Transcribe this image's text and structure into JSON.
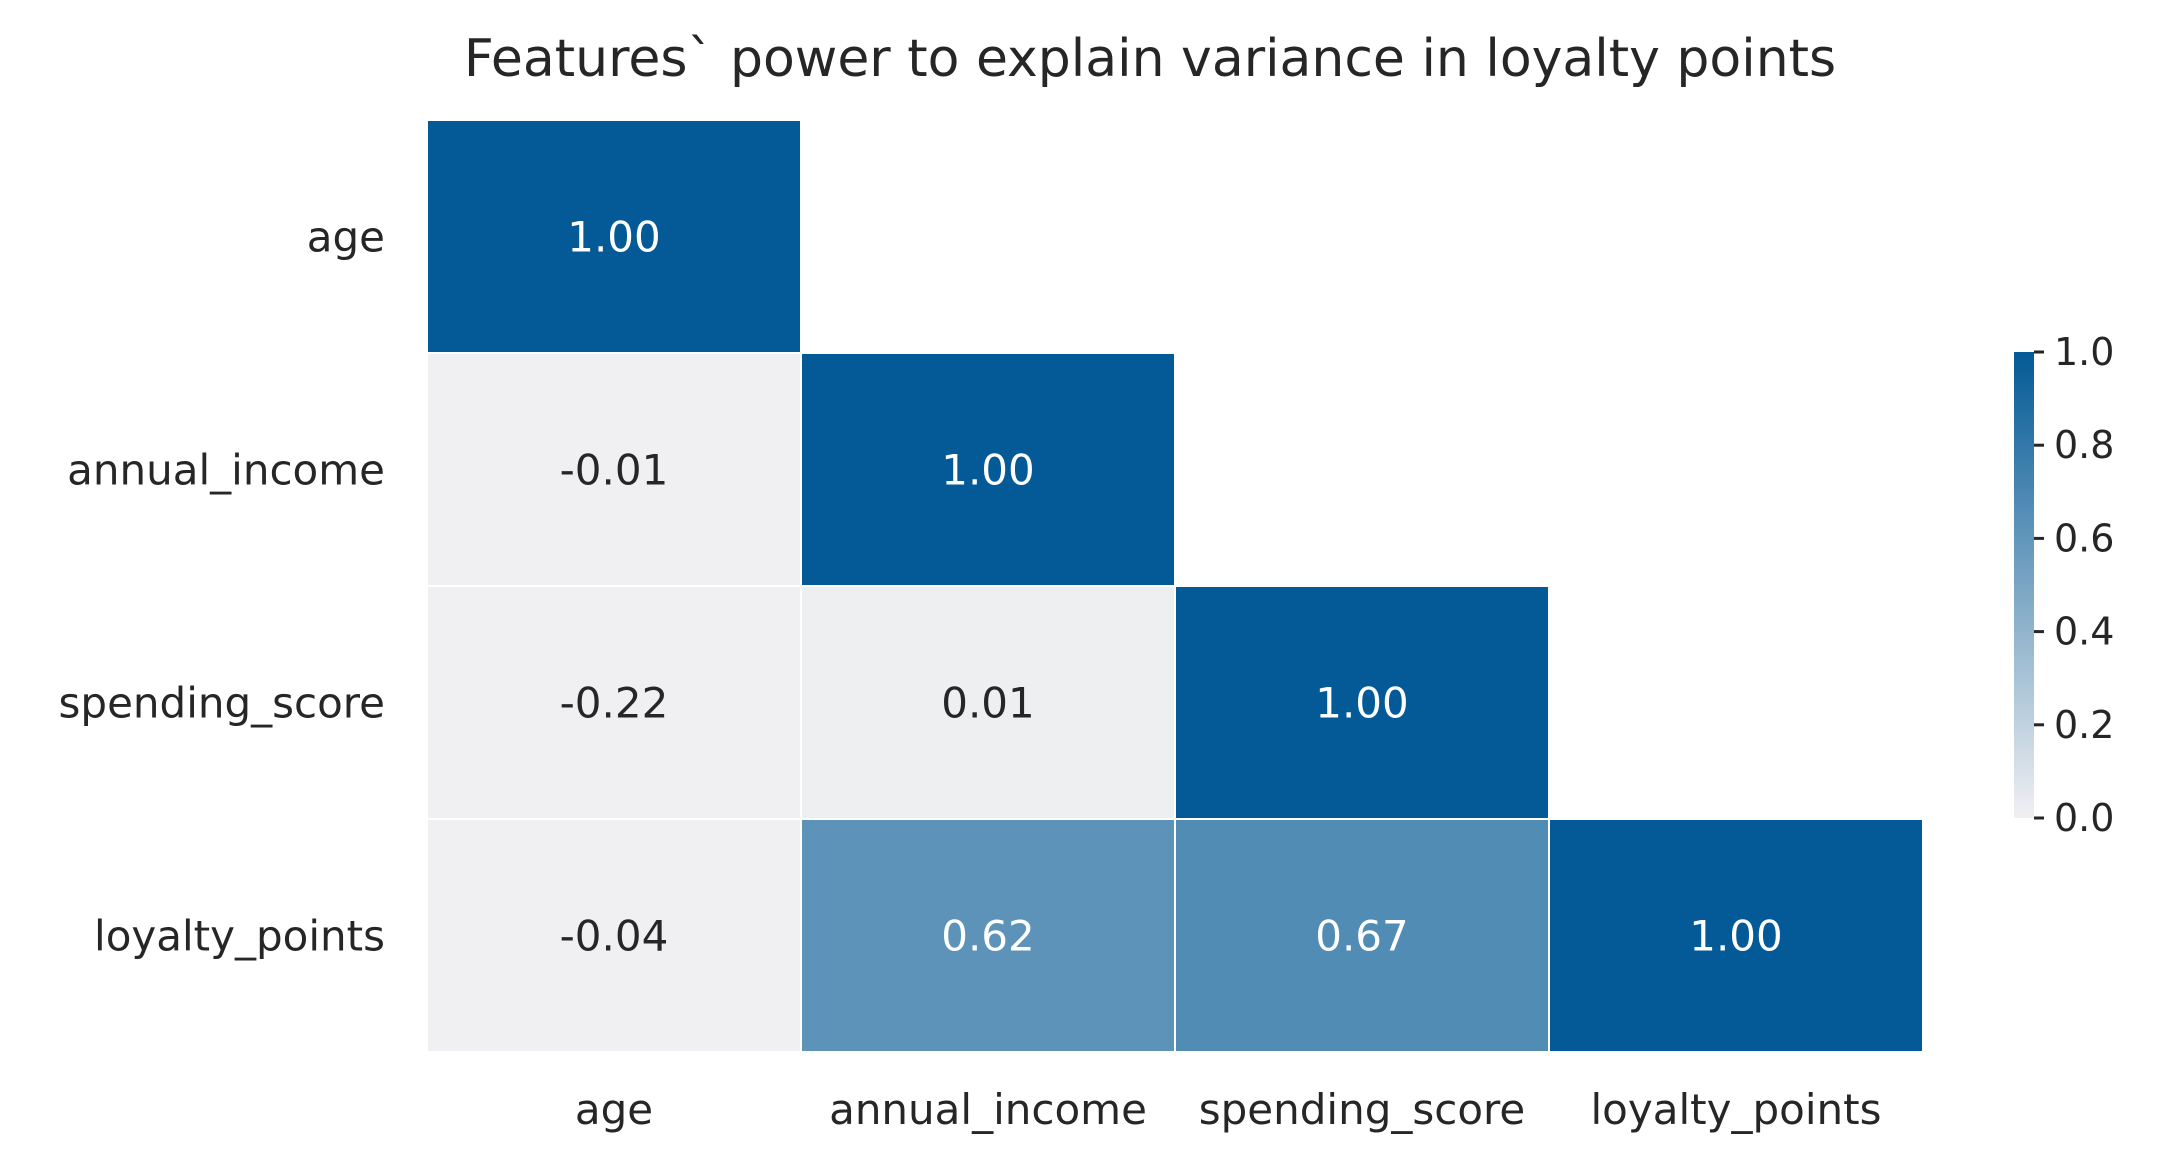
{
  "chart_data": {
    "type": "heatmap",
    "title": "Features` power to explain variance in loyalty points",
    "xlabel": "",
    "ylabel": "",
    "rows": [
      "age",
      "annual_income",
      "spending_score",
      "loyalty_points"
    ],
    "columns": [
      "age",
      "annual_income",
      "spending_score",
      "loyalty_points"
    ],
    "matrix": [
      [
        1.0,
        null,
        null,
        null
      ],
      [
        -0.01,
        1.0,
        null,
        null
      ],
      [
        -0.22,
        0.01,
        1.0,
        null
      ],
      [
        -0.04,
        0.62,
        0.67,
        1.0
      ]
    ],
    "cell_labels": [
      [
        "1.00",
        null,
        null,
        null
      ],
      [
        "-0.01",
        "1.00",
        null,
        null
      ],
      [
        "-0.22",
        "0.01",
        "1.00",
        null
      ],
      [
        "-0.04",
        "0.62",
        "0.67",
        "1.00"
      ]
    ],
    "mask": "upper-triangle",
    "colorbar": {
      "range": [
        0.0,
        1.0
      ],
      "ticks": [
        "0.0",
        "0.2",
        "0.4",
        "0.6",
        "0.8",
        "1.0"
      ],
      "low_color": "#f0f0f2",
      "high_color": "#035a96"
    },
    "grid": false,
    "legend": "colorbar-right"
  }
}
